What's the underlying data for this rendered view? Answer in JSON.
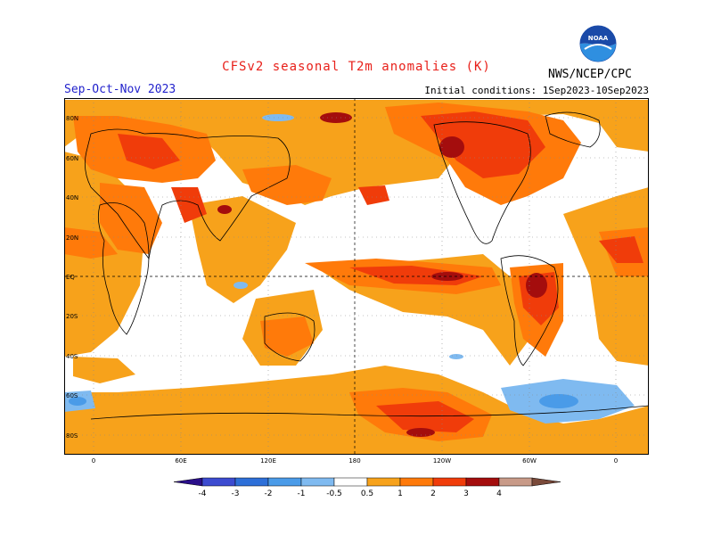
{
  "title": "CFSv2 seasonal T2m anomalies (K)",
  "season": "Sep-Oct-Nov 2023",
  "initial_conditions": "Initial conditions: 1Sep2023-10Sep2023",
  "agency": "NWS/NCEP/CPC",
  "logo_text": "NOAA",
  "lat_labels": [
    "80N",
    "60N",
    "40N",
    "20N",
    "EQ",
    "20S",
    "40S",
    "60S",
    "80S"
  ],
  "lon_labels": [
    "0",
    "60E",
    "120E",
    "180",
    "120W",
    "60W",
    "0"
  ],
  "colorbar": {
    "labels": [
      "-4",
      "-3",
      "-2",
      "-1",
      "-0.5",
      "0.5",
      "1",
      "2",
      "3",
      "4"
    ],
    "colors": [
      "#2a0f8a",
      "#3c4bd0",
      "#2d6fd8",
      "#4a9be8",
      "#7fbaf0",
      "#ffffff",
      "#f7a21b",
      "#ff7a0a",
      "#f03c0a",
      "#a40d0d",
      "#c89a88",
      "#7a4a3a"
    ]
  },
  "anomaly_colors": {
    "warm_0.5": "#f7a21b",
    "warm_1": "#ff7a0a",
    "warm_2": "#f03c0a",
    "warm_3": "#a40d0d",
    "cool_0.5": "#7fbaf0",
    "cool_1": "#4a9be8"
  }
}
